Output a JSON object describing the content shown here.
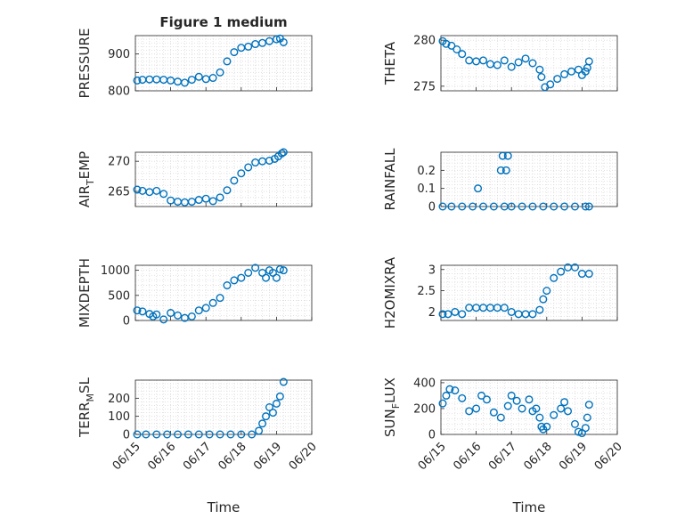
{
  "figure": {
    "title": "Figure 1 medium",
    "xlabel": "Time",
    "x_ticklabels": [
      "06/15",
      "06/16",
      "06/17",
      "06/18",
      "06/19",
      "06/20"
    ]
  },
  "colors": {
    "marker": "#0072BD",
    "axis": "#262626",
    "grid": "#d9d9d9"
  },
  "chart_data": [
    {
      "type": "scatter",
      "name": "PRESSURE",
      "ylabel": "PRESSURE",
      "xlim": [
        "06/15",
        "06/20"
      ],
      "ylim": [
        800,
        950
      ],
      "yticks": [
        800,
        850,
        900
      ],
      "ytick_labels": [
        "800",
        "",
        "900"
      ],
      "x": [
        0.05,
        0.2,
        0.4,
        0.6,
        0.8,
        1.0,
        1.2,
        1.4,
        1.6,
        1.8,
        2.0,
        2.2,
        2.4,
        2.6,
        2.8,
        3.0,
        3.2,
        3.4,
        3.6,
        3.8,
        4.0,
        4.1,
        4.2
      ],
      "y": [
        828,
        830,
        831,
        831,
        830,
        828,
        825,
        822,
        830,
        838,
        832,
        835,
        850,
        880,
        905,
        917,
        920,
        927,
        930,
        935,
        940,
        942,
        932
      ]
    },
    {
      "type": "scatter",
      "name": "THETA",
      "ylabel": "THETA",
      "xlim": [
        "06/15",
        "06/20"
      ],
      "ylim": [
        274.5,
        280.5
      ],
      "yticks": [
        275,
        280
      ],
      "ytick_labels": [
        "275",
        "280"
      ],
      "x": [
        0.05,
        0.15,
        0.3,
        0.45,
        0.6,
        0.8,
        1.0,
        1.2,
        1.4,
        1.6,
        1.8,
        2.0,
        2.2,
        2.4,
        2.6,
        2.8,
        2.85,
        2.95,
        3.1,
        3.3,
        3.5,
        3.7,
        3.9,
        4.0,
        4.1,
        4.15,
        4.2
      ],
      "y": [
        279.9,
        279.6,
        279.4,
        279.0,
        278.5,
        277.8,
        277.7,
        277.8,
        277.4,
        277.3,
        277.8,
        277.1,
        277.6,
        278.0,
        277.5,
        276.8,
        276.0,
        274.9,
        275.2,
        275.8,
        276.3,
        276.6,
        276.8,
        276.2,
        276.6,
        277.0,
        277.7
      ]
    },
    {
      "type": "scatter",
      "name": "AIR_TEMP",
      "ylabel": "AIR",
      "ylabel_sub": "T",
      "ylabel_tail": "EMP",
      "xlim": [
        "06/15",
        "06/20"
      ],
      "ylim": [
        262.5,
        271.5
      ],
      "yticks": [
        265,
        270
      ],
      "ytick_labels": [
        "265",
        "270"
      ],
      "x": [
        0.05,
        0.2,
        0.4,
        0.6,
        0.8,
        1.0,
        1.2,
        1.4,
        1.6,
        1.8,
        2.0,
        2.2,
        2.4,
        2.6,
        2.8,
        3.0,
        3.2,
        3.4,
        3.6,
        3.8,
        3.95,
        4.05,
        4.15,
        4.2
      ],
      "y": [
        265.3,
        265.1,
        264.9,
        265.1,
        264.6,
        263.5,
        263.3,
        263.2,
        263.3,
        263.6,
        263.8,
        263.4,
        264.0,
        265.2,
        266.8,
        268.0,
        269.0,
        269.8,
        270.0,
        270.1,
        270.4,
        270.8,
        271.3,
        271.5
      ]
    },
    {
      "type": "scatter",
      "name": "RAINFALL",
      "ylabel": "RAINFALL",
      "xlim": [
        "06/15",
        "06/20"
      ],
      "ylim": [
        0,
        0.3
      ],
      "yticks": [
        0,
        0.1,
        0.2
      ],
      "ytick_labels": [
        "0",
        "0.1",
        "0.2"
      ],
      "x": [
        0.05,
        0.3,
        0.6,
        0.9,
        1.05,
        1.2,
        1.5,
        1.7,
        1.75,
        1.8,
        1.85,
        1.9,
        2.0,
        2.3,
        2.6,
        2.9,
        3.2,
        3.5,
        3.8,
        4.1,
        4.2
      ],
      "y": [
        0,
        0,
        0,
        0,
        0.1,
        0,
        0,
        0.2,
        0.28,
        0,
        0.2,
        0.28,
        0,
        0,
        0,
        0,
        0,
        0,
        0,
        0,
        0
      ]
    },
    {
      "type": "scatter",
      "name": "MIXDEPTH",
      "ylabel": "MIXDEPTH",
      "xlim": [
        "06/15",
        "06/20"
      ],
      "ylim": [
        0,
        1100
      ],
      "yticks": [
        0,
        500,
        1000
      ],
      "ytick_labels": [
        "0",
        "500",
        "1000"
      ],
      "x": [
        0.05,
        0.2,
        0.4,
        0.5,
        0.6,
        0.8,
        1.0,
        1.2,
        1.4,
        1.6,
        1.8,
        2.0,
        2.2,
        2.4,
        2.6,
        2.8,
        3.0,
        3.2,
        3.4,
        3.6,
        3.7,
        3.8,
        3.9,
        4.0,
        4.1,
        4.2
      ],
      "y": [
        200,
        180,
        130,
        80,
        120,
        20,
        150,
        100,
        50,
        80,
        200,
        250,
        350,
        450,
        700,
        800,
        850,
        950,
        1050,
        950,
        850,
        1000,
        950,
        850,
        1020,
        1000
      ]
    },
    {
      "type": "scatter",
      "name": "H2OMIXRA",
      "ylabel": "H2OMIXRA",
      "xlim": [
        "06/15",
        "06/20"
      ],
      "ylim": [
        1.8,
        3.1
      ],
      "yticks": [
        2,
        2.5,
        3
      ],
      "ytick_labels": [
        "2",
        "2.5",
        "3"
      ],
      "x": [
        0.05,
        0.2,
        0.4,
        0.6,
        0.8,
        1.0,
        1.2,
        1.4,
        1.6,
        1.8,
        2.0,
        2.2,
        2.4,
        2.6,
        2.8,
        2.9,
        3.0,
        3.2,
        3.4,
        3.6,
        3.8,
        4.0,
        4.2
      ],
      "y": [
        1.95,
        1.95,
        2.0,
        1.95,
        2.1,
        2.1,
        2.1,
        2.1,
        2.1,
        2.1,
        2.0,
        1.95,
        1.95,
        1.95,
        2.05,
        2.3,
        2.5,
        2.8,
        2.95,
        3.05,
        3.05,
        2.9,
        2.9
      ]
    },
    {
      "type": "scatter",
      "name": "TERR_MSL",
      "ylabel": "TERR",
      "ylabel_sub": "M",
      "ylabel_tail": "SL",
      "xlim": [
        "06/15",
        "06/20"
      ],
      "ylim": [
        0,
        300
      ],
      "yticks": [
        0,
        100,
        200
      ],
      "ytick_labels": [
        "0",
        "100",
        "200"
      ],
      "x": [
        0.05,
        0.3,
        0.6,
        0.9,
        1.2,
        1.5,
        1.8,
        2.1,
        2.4,
        2.7,
        3.0,
        3.3,
        3.5,
        3.6,
        3.7,
        3.8,
        3.9,
        4.0,
        4.1,
        4.2
      ],
      "y": [
        0,
        0,
        0,
        0,
        0,
        0,
        0,
        0,
        0,
        0,
        0,
        0,
        20,
        60,
        100,
        150,
        120,
        170,
        210,
        290
      ]
    },
    {
      "type": "scatter",
      "name": "SUN_FLUX",
      "ylabel": "SUN",
      "ylabel_sub": "F",
      "ylabel_tail": "LUX",
      "xlim": [
        "06/15",
        "06/20"
      ],
      "ylim": [
        0,
        420
      ],
      "yticks": [
        0,
        200,
        400
      ],
      "ytick_labels": [
        "0",
        "200",
        "400"
      ],
      "x": [
        0.05,
        0.15,
        0.25,
        0.4,
        0.6,
        0.8,
        1.0,
        1.15,
        1.3,
        1.5,
        1.7,
        1.9,
        2.0,
        2.15,
        2.3,
        2.5,
        2.6,
        2.7,
        2.8,
        2.85,
        2.9,
        3.0,
        3.2,
        3.4,
        3.5,
        3.6,
        3.8,
        3.9,
        4.0,
        4.1,
        4.15,
        4.2
      ],
      "y": [
        240,
        300,
        350,
        340,
        280,
        180,
        200,
        300,
        270,
        170,
        130,
        220,
        300,
        260,
        200,
        270,
        180,
        200,
        130,
        60,
        40,
        60,
        150,
        200,
        250,
        180,
        80,
        20,
        10,
        50,
        130,
        230
      ]
    }
  ]
}
